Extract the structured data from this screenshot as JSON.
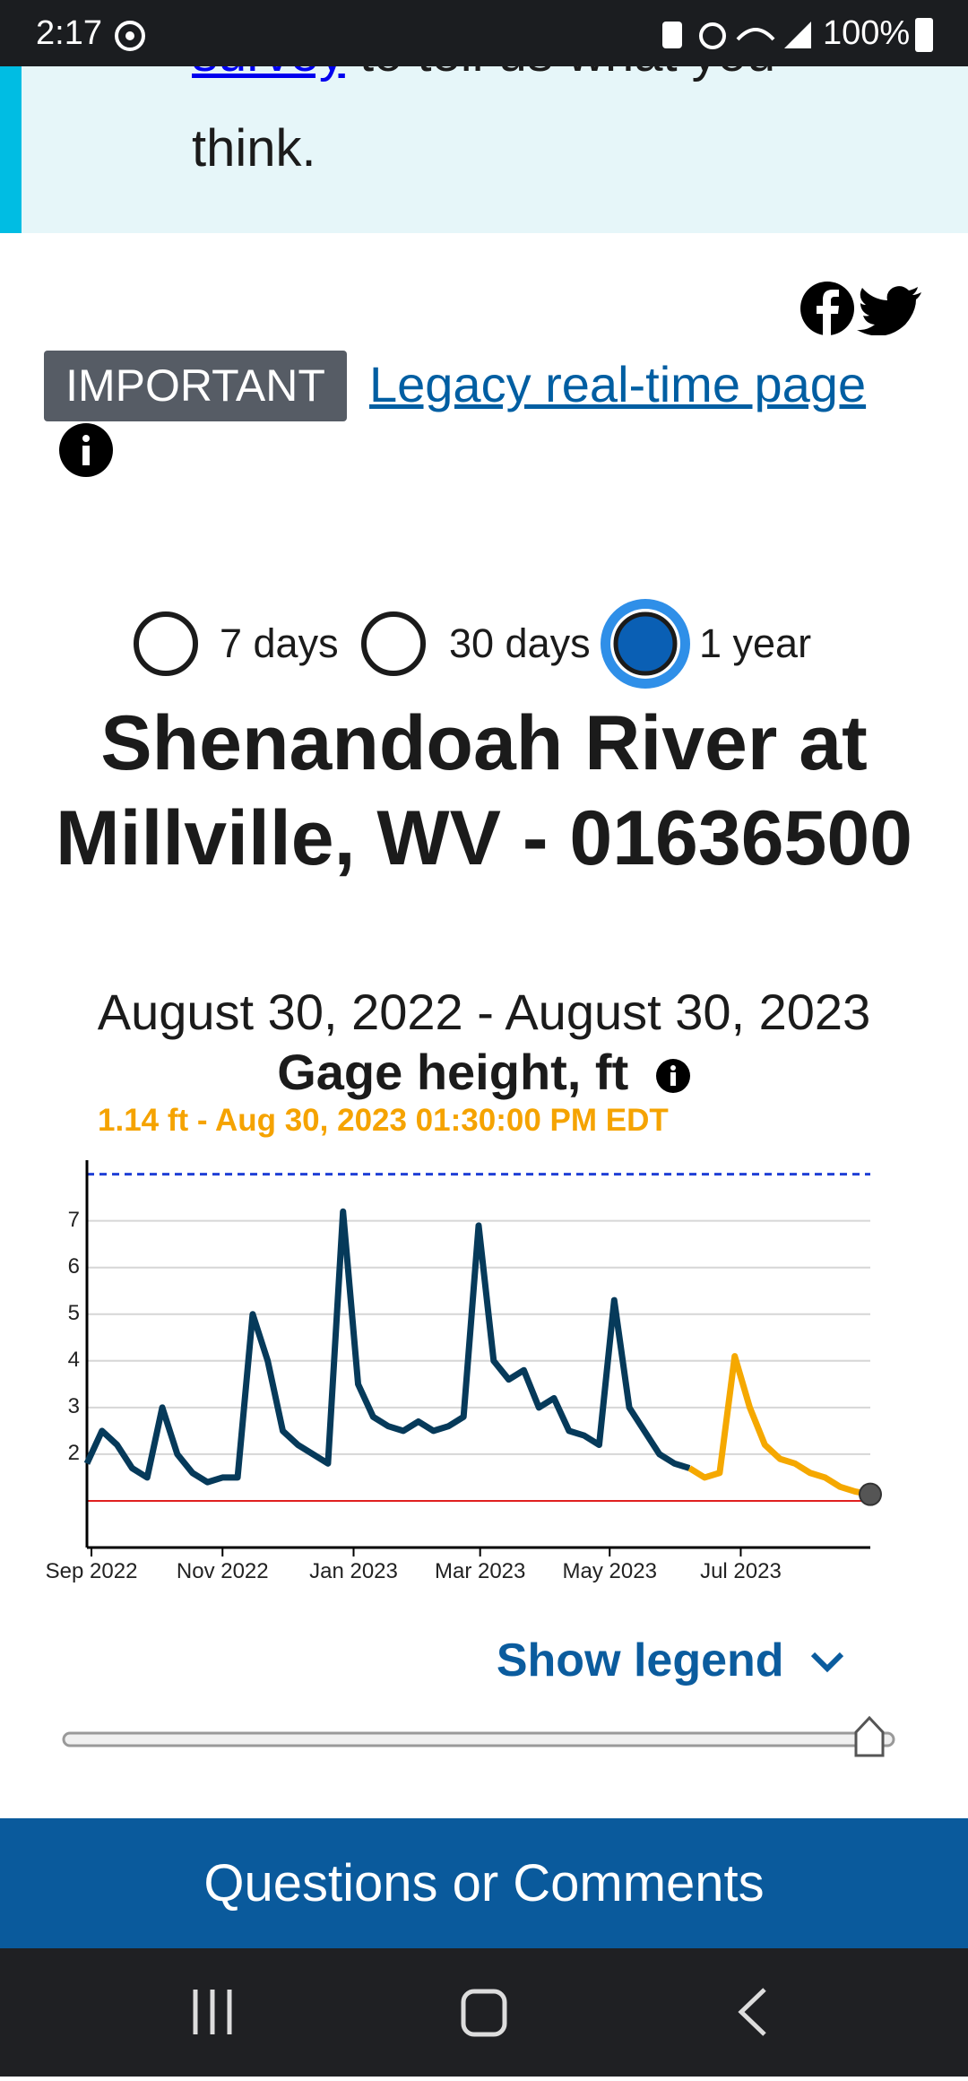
{
  "status_bar": {
    "time": "2:17",
    "battery": "100%"
  },
  "banner": {
    "link": "survey",
    "text": " to tell us what you",
    "text2": "think."
  },
  "important": "IMPORTANT",
  "legacy_link": "Legacy real-time page",
  "periods": [
    {
      "label": "7 days",
      "selected": false
    },
    {
      "label": "30 days",
      "selected": false
    },
    {
      "label": "1 year",
      "selected": true
    }
  ],
  "chart_data": {
    "type": "line",
    "title": "Shenandoah River at Millville, WV - 01636500",
    "subtitle": "August 30, 2022 - August 30, 2023",
    "y_label": "Gage height, ft",
    "current": "1.14 ft - Aug 30, 2023 01:30:00 PM EDT",
    "xlim": [
      0,
      52
    ],
    "xticks": [
      {
        "value": 0.3,
        "label": "Sep 2022"
      },
      {
        "value": 9,
        "label": "Nov 2022"
      },
      {
        "value": 17.7,
        "label": "Jan 2023"
      },
      {
        "value": 26.1,
        "label": "Mar 2023"
      },
      {
        "value": 34.7,
        "label": "May 2023"
      },
      {
        "value": 43.4,
        "label": "Jul 2023"
      }
    ],
    "ylim": [
      0,
      8.3
    ],
    "yticks": [
      2,
      3,
      4,
      5,
      6,
      7
    ],
    "grid": true,
    "reference_lines": [
      {
        "value": 8,
        "color": "#1f3fd6",
        "dashed": true
      },
      {
        "value": 1,
        "color": "#e02020",
        "dashed": false
      }
    ],
    "series": [
      {
        "color": "#063a5a",
        "values": [
          1.8,
          2.5,
          2.2,
          1.7,
          1.5,
          3.0,
          2.0,
          1.6,
          1.4,
          1.5,
          1.5,
          5.0,
          4.0,
          2.5,
          2.2,
          2.0,
          1.8,
          7.2,
          3.5,
          2.8,
          2.6,
          2.5,
          2.7,
          2.5,
          2.6,
          2.8,
          6.9,
          4.0,
          3.6,
          3.8,
          3.0,
          3.2,
          2.5,
          2.4,
          2.2,
          5.3,
          3.0,
          2.5,
          2.0,
          1.8,
          1.7,
          null,
          null,
          null,
          null,
          null,
          null,
          null,
          null,
          null,
          null,
          null,
          null
        ]
      },
      {
        "color": "#f5a800",
        "values": [
          null,
          null,
          null,
          null,
          null,
          null,
          null,
          null,
          null,
          null,
          null,
          null,
          null,
          null,
          null,
          null,
          null,
          null,
          null,
          null,
          null,
          null,
          null,
          null,
          null,
          null,
          null,
          null,
          null,
          null,
          null,
          null,
          null,
          null,
          null,
          null,
          null,
          null,
          null,
          null,
          1.7,
          1.5,
          1.6,
          4.1,
          3.0,
          2.2,
          1.9,
          1.8,
          1.6,
          1.5,
          1.3,
          1.2,
          1.14
        ]
      }
    ]
  },
  "show_legend": "Show legend",
  "footer": "Questions or Comments"
}
